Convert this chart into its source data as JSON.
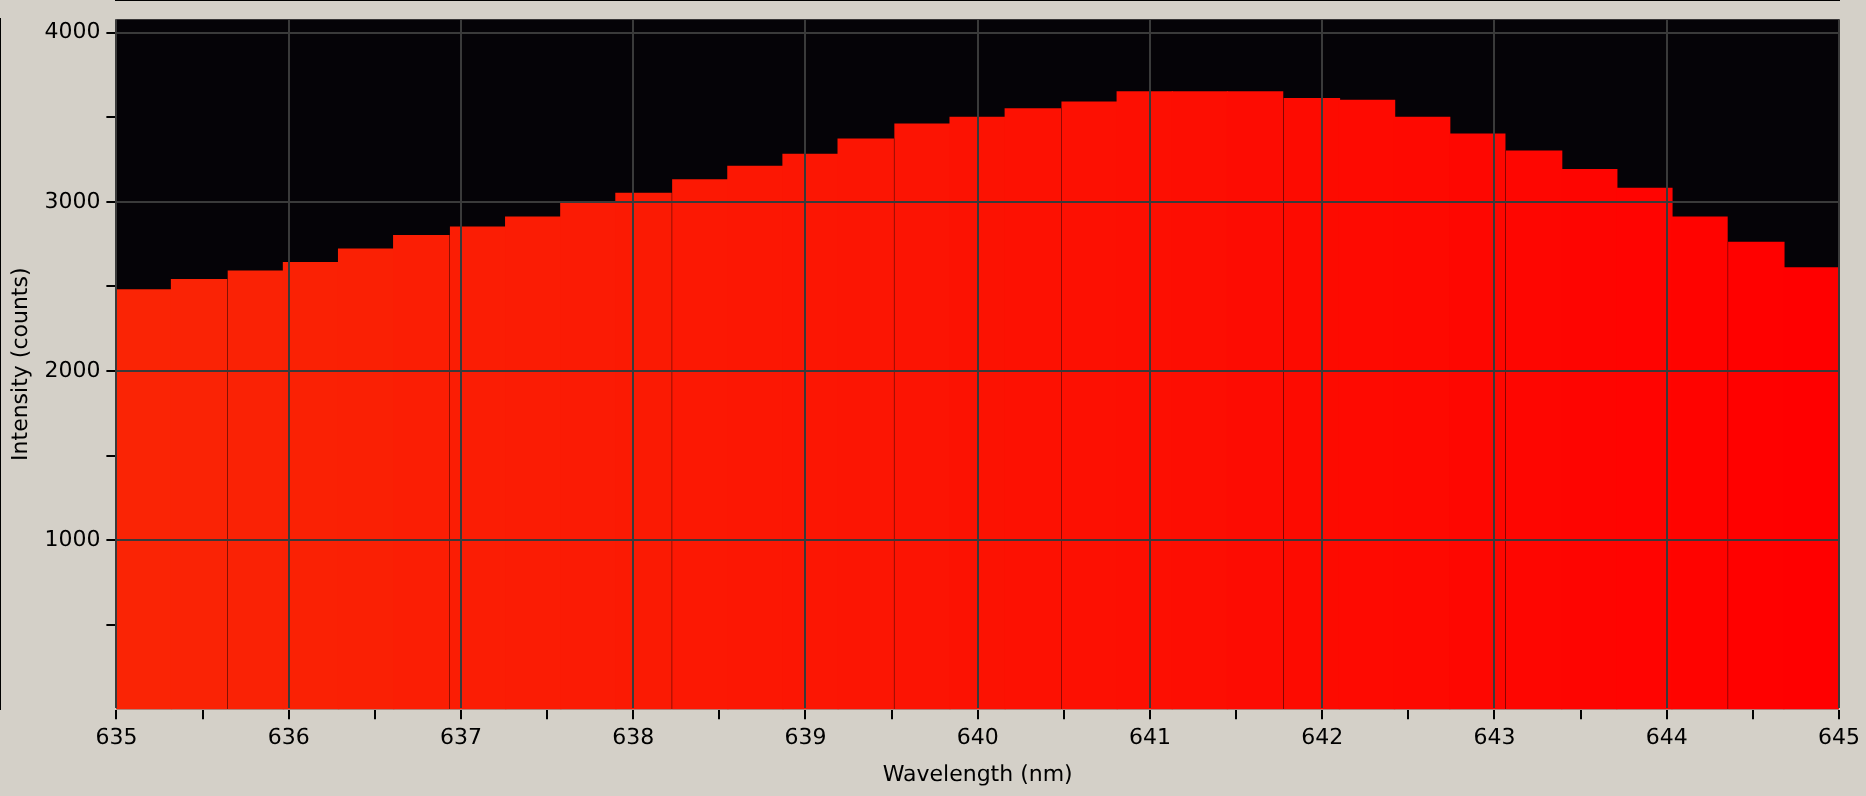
{
  "chart_data": {
    "type": "bar",
    "xlabel": "Wavelength (nm)",
    "ylabel": "Intensity (counts)",
    "x": [
      635.16,
      635.48,
      635.81,
      636.13,
      636.45,
      636.77,
      637.1,
      637.42,
      637.74,
      638.06,
      638.39,
      638.71,
      639.03,
      639.35,
      639.68,
      640.0,
      640.32,
      640.65,
      640.97,
      641.29,
      641.61,
      641.94,
      642.26,
      642.58,
      642.9,
      643.23,
      643.55,
      643.87,
      644.19,
      644.52,
      644.84
    ],
    "values": [
      2480,
      2540,
      2590,
      2640,
      2720,
      2800,
      2850,
      2910,
      2990,
      3050,
      3130,
      3210,
      3280,
      3370,
      3460,
      3500,
      3550,
      3590,
      3650,
      3650,
      3650,
      3610,
      3600,
      3500,
      3400,
      3300,
      3190,
      3080,
      2910,
      2760,
      2610
    ],
    "colors": [
      "#fa2405",
      "#fa2305",
      "#fa2205",
      "#fa2104",
      "#fa2004",
      "#fb1e04",
      "#fb1d04",
      "#fb1c04",
      "#fb1b04",
      "#fb1a03",
      "#fc1803",
      "#fc1703",
      "#fc1603",
      "#fc1503",
      "#fc1403",
      "#fc1202",
      "#fd1102",
      "#fd1002",
      "#fd0f02",
      "#fd0e02",
      "#fd0c02",
      "#fd0b01",
      "#fe0a01",
      "#fe0901",
      "#fe0701",
      "#fe0601",
      "#fe0501",
      "#ff0401",
      "#ff0300",
      "#ff0100",
      "#ff0000"
    ],
    "xlim": [
      635,
      645
    ],
    "xticks": [
      635,
      {
        "value": 635.5,
        "label": null
      },
      636,
      {
        "value": 636.5,
        "label": null
      },
      637,
      {
        "value": 637.5,
        "label": null
      },
      638,
      {
        "value": 638.5,
        "label": null
      },
      639,
      {
        "value": 639.5,
        "label": null
      },
      640,
      {
        "value": 640.5,
        "label": null
      },
      641,
      {
        "value": 641.5,
        "label": null
      },
      642,
      {
        "value": 642.5,
        "label": null
      },
      643,
      {
        "value": 643.5,
        "label": null
      },
      644,
      {
        "value": 644.5,
        "label": null
      },
      645
    ],
    "ylim": [
      0,
      4080
    ],
    "yticks": [
      {
        "value": 500,
        "label": null
      },
      1000,
      {
        "value": 1500,
        "label": null
      },
      2000,
      {
        "value": 2500,
        "label": null
      },
      3000,
      {
        "value": 3500,
        "label": null
      },
      4000
    ],
    "grid": true,
    "legend": false
  }
}
